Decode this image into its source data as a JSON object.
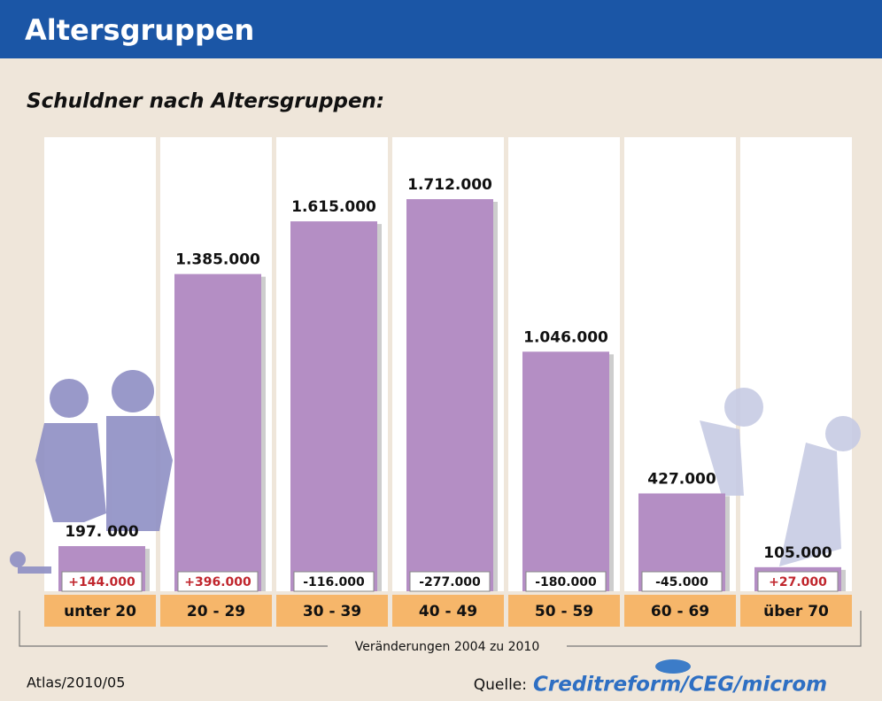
{
  "chart_data": {
    "type": "bar",
    "title": "Altersgruppen",
    "subtitle": "Schuldner nach Altersgruppen:",
    "categories": [
      "unter 20",
      "20 - 29",
      "30 - 39",
      "40 - 49",
      "50 - 59",
      "60 - 69",
      "über 70"
    ],
    "values": [
      197000,
      1385000,
      1615000,
      1712000,
      1046000,
      427000,
      105000
    ],
    "value_labels": [
      "197. 000",
      "1.385.000",
      "1.615.000",
      "1.712.000",
      "1.046.000",
      "427.000",
      "105.000"
    ],
    "color": "#b48ec4",
    "changes": {
      "name": "Veränderungen 2004 zu 2010",
      "values": [
        144000,
        396000,
        -116000,
        -277000,
        -180000,
        -45000,
        27000
      ],
      "value_labels": [
        "+144.000",
        "+396.000",
        "-116.000",
        "-277.000",
        "-180.000",
        "-45.000",
        "+27.000"
      ]
    },
    "footer": "Atlas/2010/05",
    "source_label": "Quelle:",
    "source": "Creditreform/CEG/microm"
  }
}
